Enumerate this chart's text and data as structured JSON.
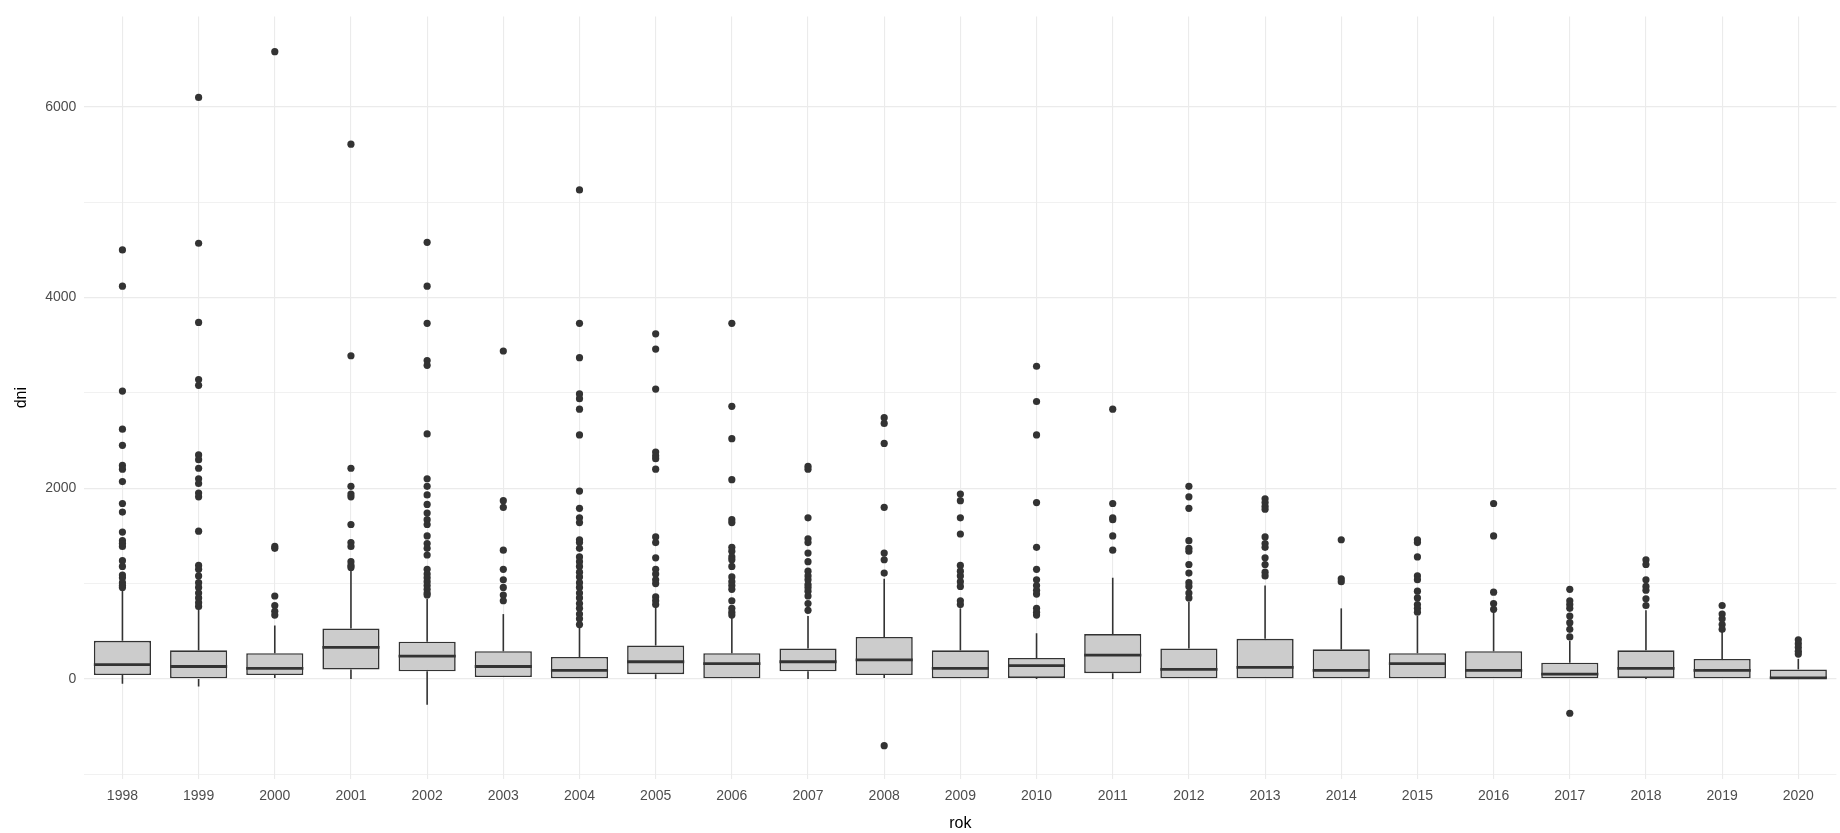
{
  "chart_data": {
    "type": "box",
    "xlabel": "rok",
    "ylabel": "dni",
    "color": "#333333",
    "grid": true,
    "ylim": [
      -1050,
      6950
    ],
    "yticks": [
      {
        "value": -1000,
        "label": null
      },
      0,
      {
        "value": 1000,
        "label": null
      },
      2000,
      {
        "value": 3000,
        "label": null
      },
      4000,
      {
        "value": 5000,
        "label": null
      },
      6000
    ],
    "categories": [
      "1998",
      "1999",
      "2000",
      "2001",
      "2002",
      "2003",
      "2004",
      "2005",
      "2006",
      "2007",
      "2008",
      "2009",
      "2010",
      "2011",
      "2012",
      "2013",
      "2014",
      "2015",
      "2016",
      "2017",
      "2018",
      "2019",
      "2020"
    ],
    "boxes": [
      {
        "low": -50,
        "q1": 40,
        "median": 150,
        "q3": 400,
        "high": 930,
        "outliers": [
          4500,
          4120,
          3020,
          2620,
          2450,
          2240,
          2200,
          2070,
          1840,
          1750,
          1540,
          1450,
          1420,
          1390,
          1240,
          1180,
          1090,
          1060,
          1010,
          980,
          960
        ]
      },
      {
        "low": -80,
        "q1": 0,
        "median": 130,
        "q3": 300,
        "high": 740,
        "outliers": [
          6100,
          4570,
          3740,
          3140,
          3080,
          2350,
          2300,
          2210,
          2100,
          2050,
          1950,
          1910,
          1550,
          1190,
          1150,
          1080,
          1010,
          960,
          900,
          850,
          800,
          760
        ]
      },
      {
        "low": 10,
        "q1": 40,
        "median": 110,
        "q3": 270,
        "high": 560,
        "outliers": [
          6580,
          1390,
          1370,
          870,
          770,
          710,
          670
        ]
      },
      {
        "low": 0,
        "q1": 100,
        "median": 330,
        "q3": 530,
        "high": 1150,
        "outliers": [
          5610,
          3390,
          2210,
          2020,
          1940,
          1910,
          1620,
          1430,
          1390,
          1230,
          1190,
          1170
        ]
      },
      {
        "low": -270,
        "q1": 80,
        "median": 240,
        "q3": 390,
        "high": 840,
        "outliers": [
          4580,
          4120,
          3730,
          3340,
          3290,
          2570,
          2100,
          2020,
          1930,
          1830,
          1740,
          1670,
          1620,
          1500,
          1420,
          1370,
          1300,
          1150,
          1100,
          1060,
          1020,
          980,
          940,
          900,
          880
        ]
      },
      {
        "low": 20,
        "q1": 20,
        "median": 130,
        "q3": 290,
        "high": 680,
        "outliers": [
          3440,
          1870,
          1800,
          1350,
          1150,
          1040,
          960,
          880,
          820
        ]
      },
      {
        "low": 0,
        "q1": 0,
        "median": 90,
        "q3": 230,
        "high": 550,
        "outliers": [
          5130,
          3730,
          3370,
          2990,
          2940,
          2830,
          2560,
          1970,
          1790,
          1690,
          1640,
          1460,
          1430,
          1370,
          1280,
          1230,
          1180,
          1120,
          1070,
          1010,
          960,
          900,
          850,
          790,
          740,
          680,
          630,
          570
        ]
      },
      {
        "low": 0,
        "q1": 50,
        "median": 180,
        "q3": 350,
        "high": 760,
        "outliers": [
          3620,
          3460,
          3040,
          2380,
          2340,
          2310,
          2200,
          1490,
          1430,
          1270,
          1150,
          1100,
          1040,
          1000,
          860,
          820,
          780
        ]
      },
      {
        "low": 0,
        "q1": 0,
        "median": 160,
        "q3": 270,
        "high": 640,
        "outliers": [
          3730,
          2860,
          2520,
          2090,
          1670,
          1640,
          1380,
          1340,
          1280,
          1250,
          1180,
          1070,
          1020,
          980,
          940,
          820,
          740,
          700,
          670
        ]
      },
      {
        "low": 0,
        "q1": 80,
        "median": 180,
        "q3": 320,
        "high": 660,
        "outliers": [
          2230,
          2200,
          1690,
          1470,
          1430,
          1320,
          1230,
          1130,
          1080,
          1040,
          990,
          960,
          920,
          870,
          790,
          720
        ]
      },
      {
        "low": 10,
        "q1": 40,
        "median": 200,
        "q3": 440,
        "high": 1050,
        "outliers": [
          2740,
          2680,
          2470,
          1800,
          1320,
          1250,
          1110,
          -700
        ]
      },
      {
        "low": 0,
        "q1": 0,
        "median": 110,
        "q3": 300,
        "high": 740,
        "outliers": [
          1940,
          1870,
          1690,
          1520,
          1190,
          1130,
          1080,
          1020,
          970,
          820,
          780
        ]
      },
      {
        "low": 0,
        "q1": 10,
        "median": 140,
        "q3": 220,
        "high": 480,
        "outliers": [
          3280,
          2910,
          2560,
          1850,
          1380,
          1150,
          1040,
          980,
          930,
          890,
          740,
          700,
          670
        ]
      },
      {
        "low": 0,
        "q1": 60,
        "median": 250,
        "q3": 470,
        "high": 1060,
        "outliers": [
          2830,
          1840,
          1690,
          1670,
          1500,
          1350
        ]
      },
      {
        "low": 0,
        "q1": 0,
        "median": 100,
        "q3": 320,
        "high": 810,
        "outliers": [
          2020,
          1910,
          1790,
          1450,
          1370,
          1340,
          1200,
          1110,
          1010,
          970,
          900,
          850
        ]
      },
      {
        "low": 0,
        "q1": 0,
        "median": 120,
        "q3": 420,
        "high": 980,
        "outliers": [
          1890,
          1850,
          1810,
          1780,
          1490,
          1420,
          1380,
          1270,
          1200,
          1120,
          1080
        ]
      },
      {
        "low": 0,
        "q1": 0,
        "median": 90,
        "q3": 310,
        "high": 740,
        "outliers": [
          1460,
          1050,
          1020
        ]
      },
      {
        "low": 0,
        "q1": 0,
        "median": 160,
        "q3": 270,
        "high": 660,
        "outliers": [
          1460,
          1430,
          1280,
          1080,
          1040,
          920,
          850,
          780,
          740,
          700
        ]
      },
      {
        "low": 0,
        "q1": 0,
        "median": 90,
        "q3": 290,
        "high": 740,
        "outliers": [
          1840,
          1500,
          910,
          790,
          730
        ]
      },
      {
        "low": 0,
        "q1": 0,
        "median": 50,
        "q3": 170,
        "high": 400,
        "outliers": [
          940,
          820,
          780,
          740,
          660,
          590,
          520,
          440,
          -360
        ]
      },
      {
        "low": 0,
        "q1": 10,
        "median": 110,
        "q3": 300,
        "high": 720,
        "outliers": [
          1250,
          1200,
          1040,
          970,
          930,
          840,
          770
        ]
      },
      {
        "low": 0,
        "q1": 0,
        "median": 90,
        "q3": 210,
        "high": 510,
        "outliers": [
          770,
          680,
          630,
          570,
          520
        ]
      },
      {
        "low": 0,
        "q1": 0,
        "median": 10,
        "q3": 100,
        "high": 210,
        "outliers": [
          410,
          370,
          330,
          290,
          260
        ]
      }
    ]
  }
}
